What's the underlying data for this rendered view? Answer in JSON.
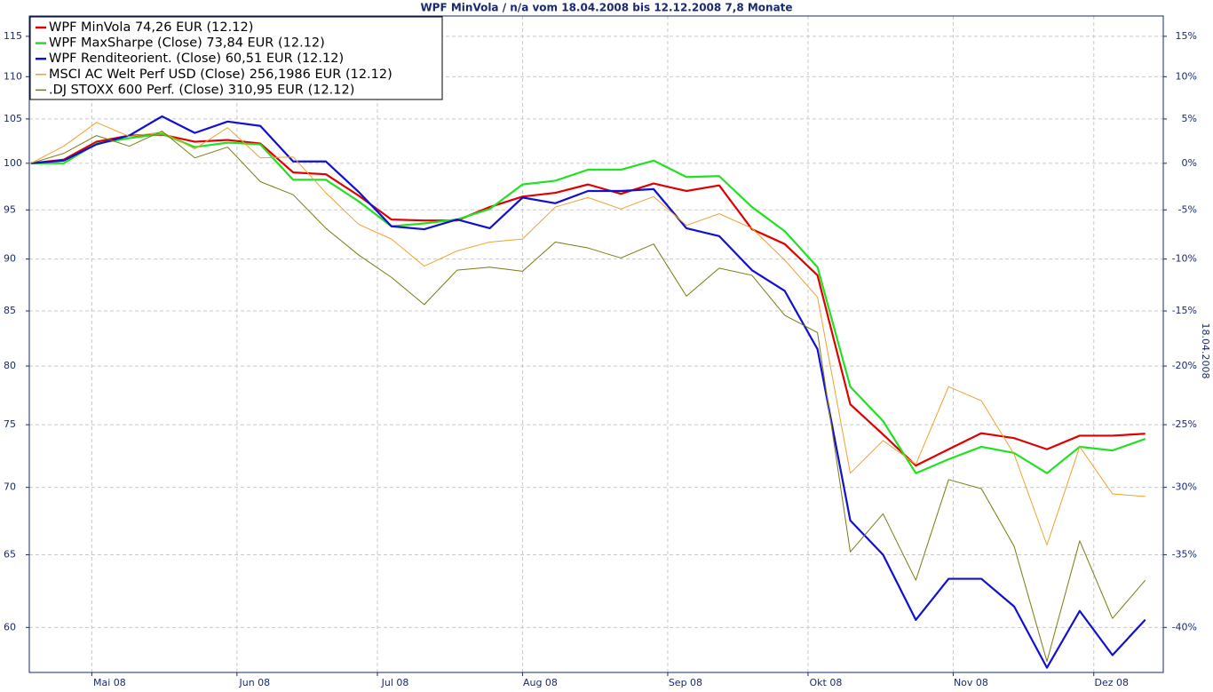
{
  "chart_data": {
    "type": "line",
    "title": "WPF MinVola / n/a vom 18.04.2008 bis 12.12.2008 7,8 Monate",
    "y2_label": "18.04.2008",
    "log_scale": true,
    "grid": true,
    "legend": "top-left",
    "categories": [
      null,
      null,
      null,
      null,
      null,
      null,
      null,
      null,
      null,
      null,
      null,
      null,
      null,
      null,
      null,
      null,
      null,
      null,
      null,
      null,
      null,
      null,
      null,
      null,
      null,
      null,
      null,
      null,
      null,
      null,
      null,
      null,
      null,
      null,
      null
    ],
    "xlim": [
      -0.05,
      34.55
    ],
    "xticks": [
      {
        "value": 1.857,
        "label": "Mai 08"
      },
      {
        "value": 6.286,
        "label": "Jun 08"
      },
      {
        "value": 10.571,
        "label": "Jul 08"
      },
      {
        "value": 15,
        "label": "Aug 08"
      },
      {
        "value": 19.43,
        "label": "Sep 08"
      },
      {
        "value": 23.71,
        "label": "Okt 08"
      },
      {
        "value": 28.14,
        "label": "Nov 08"
      },
      {
        "value": 32.43,
        "label": "Dez 08"
      }
    ],
    "ylim": [
      57.1,
      117.6
    ],
    "yticks": [
      60,
      65,
      70,
      75,
      80,
      85,
      90,
      95,
      100,
      105,
      110,
      115
    ],
    "y2lim": [
      -42.9,
      17.6
    ],
    "y2ticks": [
      {
        "value": 15,
        "label": "15%"
      },
      {
        "value": 10,
        "label": "10%"
      },
      {
        "value": 5,
        "label": "5%"
      },
      {
        "value": 0,
        "label": "0%"
      },
      {
        "value": -5,
        "label": "-5%"
      },
      {
        "value": -10,
        "label": "-10%"
      },
      {
        "value": -15,
        "label": "-15%"
      },
      {
        "value": -20,
        "label": "-20%"
      },
      {
        "value": -25,
        "label": "-25%"
      },
      {
        "value": -30,
        "label": "-30%"
      },
      {
        "value": -35,
        "label": "-35%"
      },
      {
        "value": -40,
        "label": "-40%"
      }
    ],
    "series": [
      {
        "name": "WPF MinVola 74,26 EUR (12.12)",
        "color": "#e00000",
        "width": 2.2,
        "values": [
          100,
          100.4,
          102.4,
          103.1,
          103.2,
          102.4,
          102.6,
          102.2,
          99.0,
          98.8,
          96.5,
          94.0,
          93.9,
          93.9,
          95.3,
          96.4,
          96.8,
          97.7,
          96.7,
          97.8,
          97.0,
          97.6,
          93.0,
          91.5,
          88.4,
          76.7,
          74.2,
          71.7,
          73.0,
          74.3,
          73.9,
          73.0,
          74.1,
          74.1,
          74.26
        ]
      },
      {
        "name": "WPF MaxSharpe (Close) 73,84 EUR (12.12)",
        "color": "#22e022",
        "width": 2.2,
        "values": [
          100,
          100.0,
          102.2,
          102.8,
          103.3,
          101.8,
          102.3,
          102.1,
          98.2,
          98.2,
          95.9,
          93.3,
          93.6,
          94.0,
          95.1,
          97.7,
          98.1,
          99.3,
          99.3,
          100.3,
          98.5,
          98.6,
          95.3,
          92.8,
          89.2,
          78.2,
          75.3,
          71.1,
          72.2,
          73.2,
          72.7,
          71.1,
          73.2,
          72.9,
          73.84
        ]
      },
      {
        "name": "WPF Renditeorient. (Close) 60,51 EUR (12.12)",
        "color": "#1010d0",
        "width": 2.2,
        "values": [
          100,
          100.3,
          102.1,
          103.1,
          105.3,
          103.4,
          104.7,
          104.2,
          100.2,
          100.2,
          96.9,
          93.3,
          93.0,
          94.0,
          93.1,
          96.3,
          95.7,
          97.0,
          97.0,
          97.2,
          93.1,
          92.3,
          88.9,
          86.9,
          81.5,
          67.5,
          65.0,
          60.5,
          63.3,
          63.3,
          61.4,
          57.4,
          61.1,
          58.2,
          60.51
        ]
      },
      {
        "name": "MSCI AC Welt Perf USD (Close) 256,1986 EUR (12.12)",
        "color": "#f0a030",
        "width": 1,
        "values": [
          100,
          101.9,
          104.6,
          103.0,
          103.5,
          101.6,
          104.0,
          100.6,
          100.7,
          96.8,
          93.5,
          92.0,
          89.3,
          90.8,
          91.7,
          92.0,
          95.3,
          96.3,
          95.1,
          96.4,
          93.4,
          94.6,
          93.1,
          89.9,
          86.3,
          71.1,
          73.7,
          71.8,
          78.2,
          77.0,
          72.6,
          65.7,
          73.2,
          69.5,
          69.3
        ]
      },
      {
        "name": ".DJ STOXX 600 Perf. (Close) 310,95 EUR (12.12)",
        "color": "#7a7a10",
        "width": 1,
        "values": [
          100,
          101.1,
          103.1,
          101.9,
          103.6,
          100.6,
          101.8,
          98.0,
          96.6,
          93.1,
          90.4,
          88.2,
          85.6,
          88.9,
          89.2,
          88.8,
          91.7,
          91.1,
          90.1,
          91.5,
          86.4,
          89.1,
          88.4,
          84.6,
          83.0,
          65.2,
          68.0,
          63.2,
          70.6,
          69.9,
          65.6,
          57.8,
          66.0,
          60.6,
          63.2
        ]
      }
    ]
  }
}
